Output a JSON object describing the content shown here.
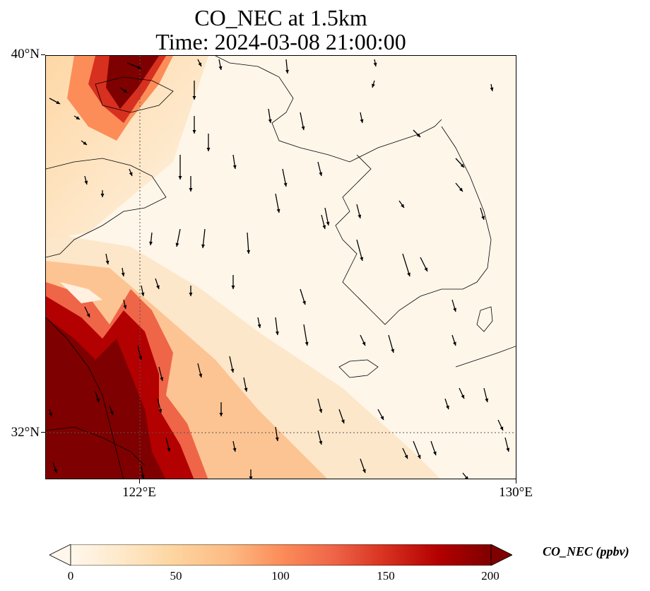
{
  "title": {
    "line1": "CO_NEC at 1.5km",
    "line2": "Time: 2024-03-08 21:00:00"
  },
  "axes": {
    "lat_labels": [
      "40°N",
      "32°N"
    ],
    "lon_labels": [
      "122°E",
      "130°E"
    ]
  },
  "colorbar": {
    "label": "CO_NEC (ppbv)",
    "ticks": [
      "0",
      "50",
      "100",
      "150",
      "200"
    ],
    "min": 0,
    "max": 200,
    "colormap": "OrRd",
    "colors": [
      "#fff7ec",
      "#fee8c8",
      "#fdd49e",
      "#fdbb84",
      "#fc8d59",
      "#ef6548",
      "#d7301f",
      "#b30000",
      "#7f0000"
    ]
  },
  "map": {
    "extent": {
      "lon_min": 120,
      "lon_max": 130,
      "lat_min": 31,
      "lat_max": 40
    },
    "gridlines": {
      "lon": [
        122
      ],
      "lat": [
        32
      ],
      "style": "dotted"
    },
    "wind_vectors": "shown"
  }
}
